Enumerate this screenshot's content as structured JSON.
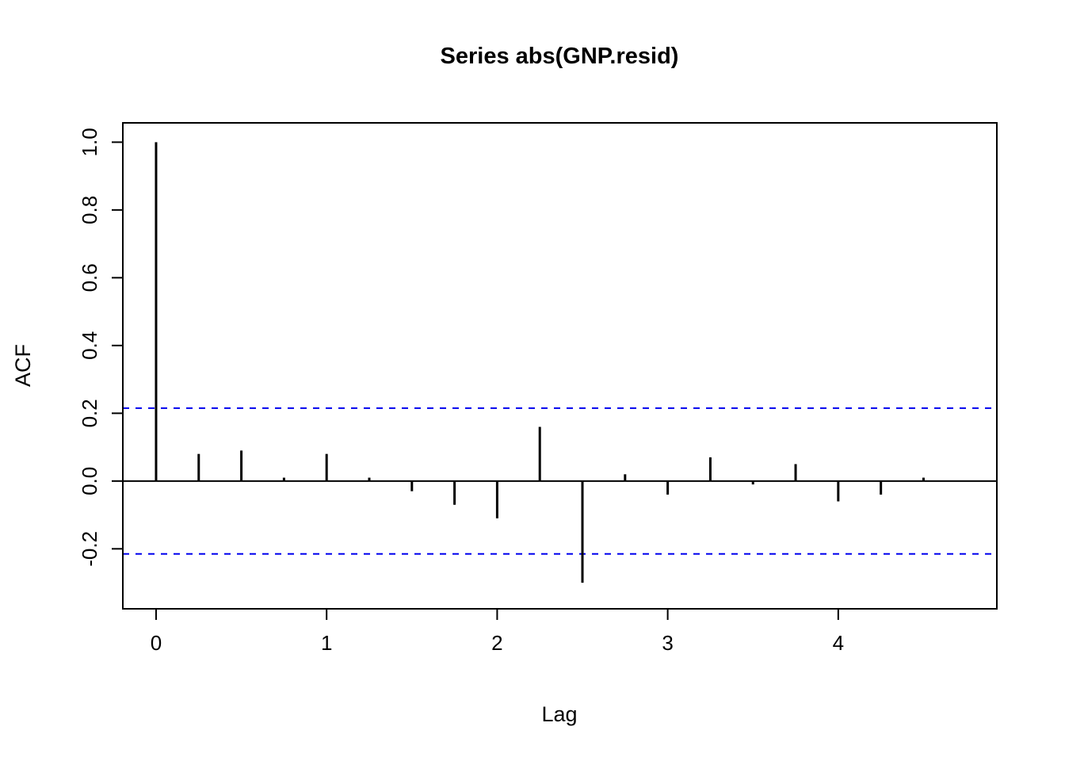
{
  "chart_data": {
    "type": "bar",
    "title": "Series  abs(GNP.resid)",
    "xlabel": "Lag",
    "ylabel": "ACF",
    "x": [
      0,
      0.25,
      0.5,
      0.75,
      1.0,
      1.25,
      1.5,
      1.75,
      2.0,
      2.25,
      2.5,
      2.75,
      3.0,
      3.25,
      3.5,
      3.75,
      4.0,
      4.25,
      4.5,
      4.75
    ],
    "acf": [
      1.0,
      0.08,
      0.09,
      0.01,
      0.08,
      0.01,
      -0.03,
      -0.07,
      -0.11,
      0.16,
      -0.3,
      0.02,
      -0.04,
      0.07,
      -0.01,
      0.05,
      -0.06,
      -0.04,
      0.01,
      0.0
    ],
    "conf_level": 0.215,
    "xlim": [
      -0.195,
      4.93
    ],
    "ylim": [
      -0.377,
      1.057
    ],
    "x_ticks": [
      0,
      1,
      2,
      3,
      4
    ],
    "x_tick_labels": [
      "0",
      "1",
      "2",
      "3",
      "4"
    ],
    "y_ticks": [
      -0.2,
      0.0,
      0.2,
      0.4,
      0.6,
      0.8,
      1.0
    ],
    "y_tick_labels": [
      "-0.2",
      "0.0",
      "0.2",
      "0.4",
      "0.6",
      "0.8",
      "1.0"
    ],
    "legend_position": "none",
    "grid": false,
    "colors": {
      "spike": "#000000",
      "axis": "#000000",
      "conf_band": "#0000ee",
      "background": "#ffffff"
    }
  }
}
